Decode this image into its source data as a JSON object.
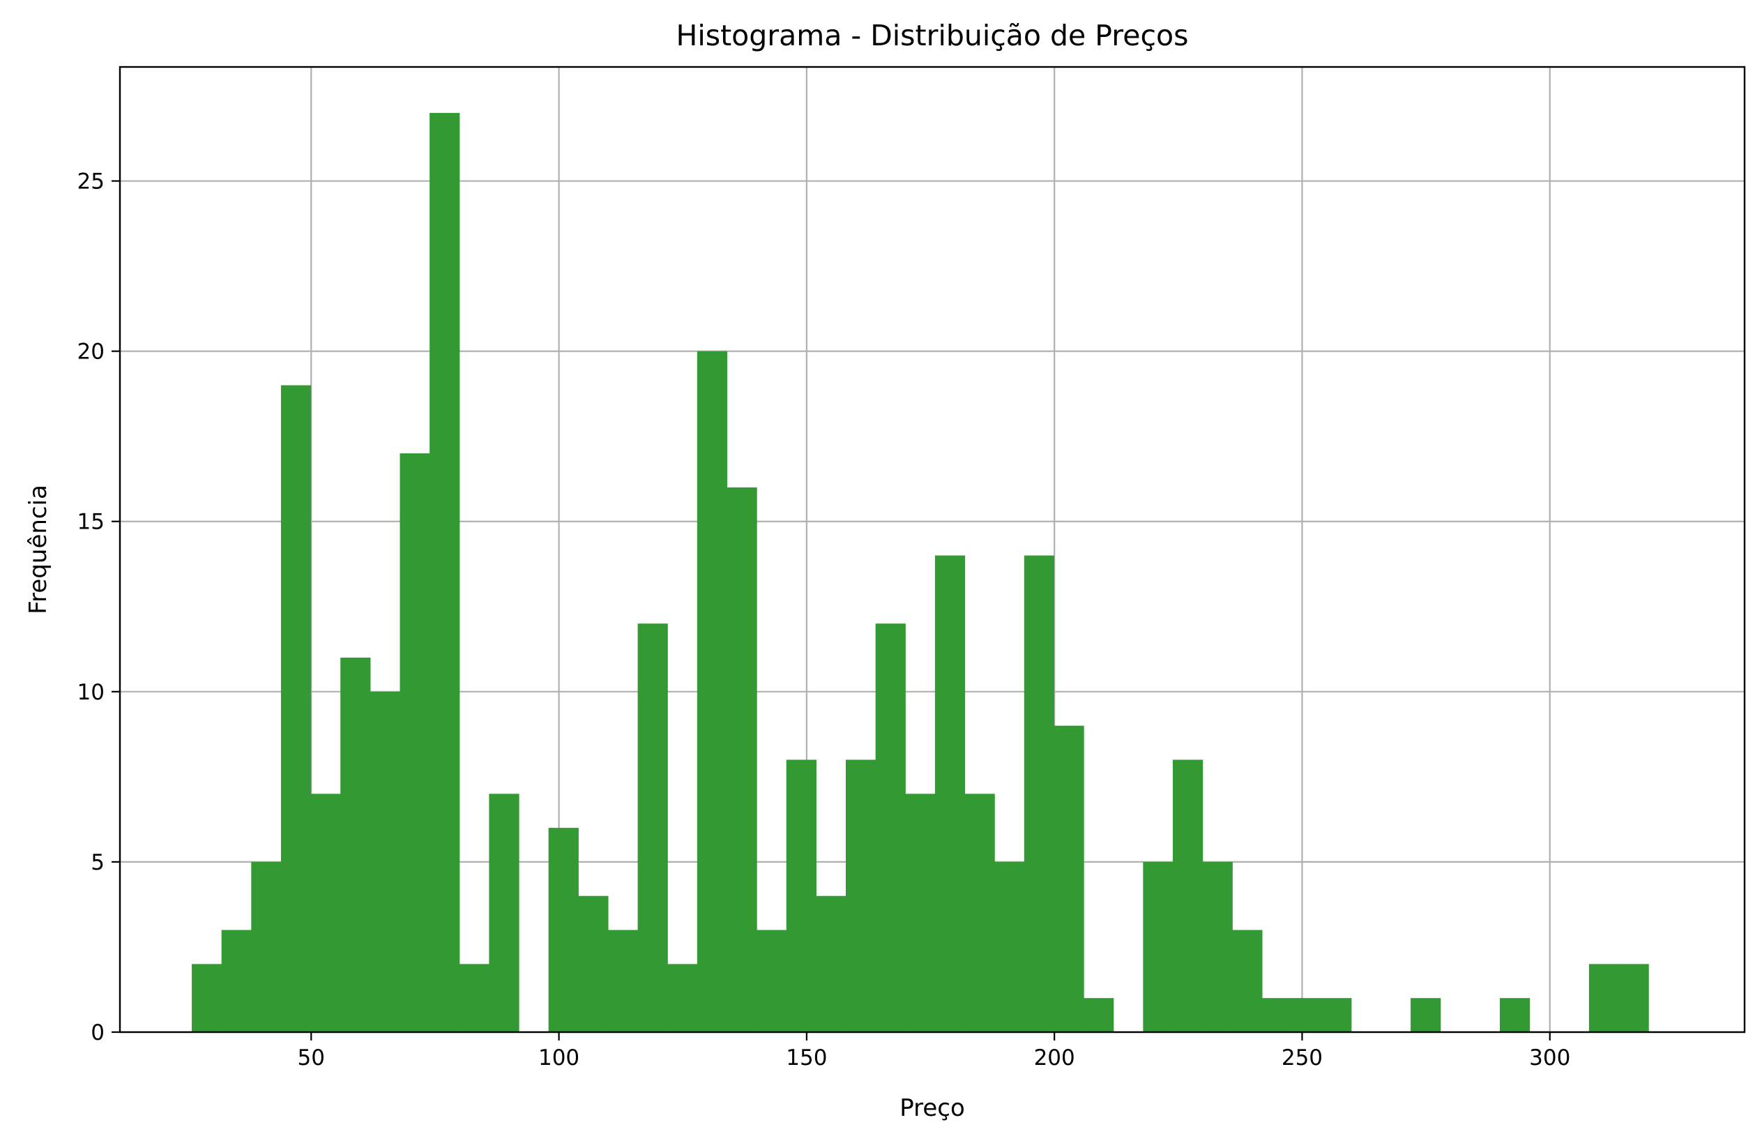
{
  "chart_data": {
    "type": "bar",
    "title": "Histograma - Distribuição de Preços",
    "xlabel": "Preço",
    "ylabel": "Frequência",
    "xlim": [
      11.4,
      339.3
    ],
    "ylim": [
      0,
      28.35
    ],
    "xticks": [
      50,
      100,
      150,
      200,
      250,
      300
    ],
    "yticks": [
      0,
      5,
      10,
      15,
      20,
      25
    ],
    "grid": true,
    "bar_color": "#339933",
    "bins": {
      "start": 25.9,
      "width": 6.0,
      "counts": [
        2,
        3,
        5,
        19,
        7,
        11,
        10,
        17,
        27,
        2,
        7,
        0,
        6,
        4,
        3,
        12,
        2,
        20,
        16,
        3,
        8,
        4,
        8,
        12,
        7,
        14,
        7,
        5,
        14,
        9,
        1,
        0,
        5,
        8,
        5,
        3,
        1,
        1,
        1,
        0,
        0,
        1,
        0,
        0,
        1,
        0,
        0,
        2,
        2
      ]
    }
  }
}
